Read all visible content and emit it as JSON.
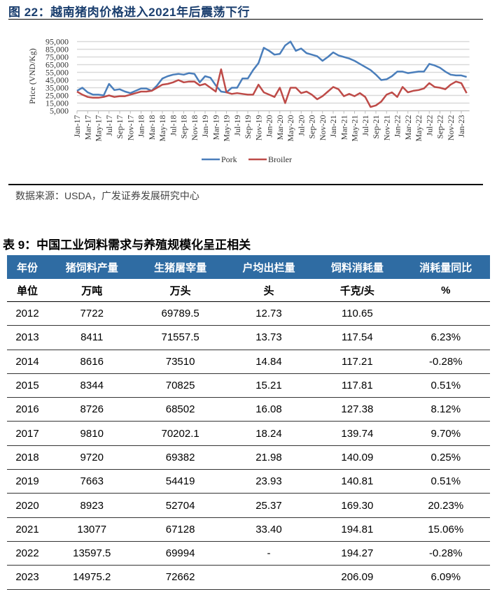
{
  "figure": {
    "title": "图 22：越南猪肉价格进入2021年后震荡下行",
    "source": "数据来源：USDA，广发证券发展研究中心"
  },
  "chart_data": {
    "type": "line",
    "ylabel": "Price (VND/Kg)",
    "xlabel": "",
    "ylim": [
      5000,
      95000
    ],
    "yticks": [
      "95,000",
      "85,000",
      "75,000",
      "65,000",
      "55,000",
      "45,000",
      "35,000",
      "25,000",
      "15,000",
      "5,000"
    ],
    "grid": true,
    "legend": "bottom",
    "x_start": "Jan-17",
    "x_tick_labels": [
      "Jan-17",
      "Mar-17",
      "May-17",
      "Jul-17",
      "Sep-17",
      "Nov-17",
      "Jan-18",
      "Mar-18",
      "May-18",
      "Jul-18",
      "Sep-18",
      "Nov-18",
      "Jan-19",
      "Mar-19",
      "May-19",
      "Jul-19",
      "Sep-19",
      "Nov-19",
      "Jan-20",
      "Mar-20",
      "May-20",
      "Jul-20",
      "Sep-20",
      "Nov-20",
      "Jan-21",
      "Mar-21",
      "May-21",
      "Jul-21",
      "Sep-21",
      "Nov-21",
      "Jan-22",
      "Mar-22",
      "May-22",
      "Jul-22",
      "Sep-22",
      "Nov-22",
      "Jan-23"
    ],
    "series": [
      {
        "name": "Pork",
        "color": "#4a7ebb",
        "values": [
          31000,
          35000,
          29000,
          26000,
          26000,
          25000,
          40000,
          32000,
          33000,
          30000,
          28000,
          31000,
          34000,
          34000,
          31000,
          38000,
          47000,
          50000,
          52000,
          53000,
          52000,
          54000,
          53000,
          42000,
          50000,
          48000,
          38000,
          30000,
          29000,
          35000,
          35000,
          47000,
          47000,
          58000,
          67000,
          87000,
          83000,
          78000,
          79000,
          90000,
          95000,
          83000,
          86000,
          80000,
          78000,
          76000,
          70000,
          75000,
          81000,
          77000,
          75000,
          73000,
          70000,
          66000,
          62000,
          58000,
          52000,
          45000,
          46000,
          50000,
          56000,
          56000,
          54000,
          55000,
          56000,
          56000,
          66000,
          64000,
          61000,
          56000,
          52000,
          51000,
          51000,
          49000
        ]
      },
      {
        "name": "Broiler",
        "color": "#be4b48",
        "values": [
          30000,
          26000,
          23000,
          22000,
          22000,
          23000,
          25000,
          23000,
          24000,
          24000,
          26000,
          28000,
          30000,
          30000,
          31000,
          35000,
          39000,
          40000,
          42000,
          45000,
          42000,
          43000,
          43000,
          38000,
          40000,
          35000,
          30000,
          59000,
          29000,
          27000,
          28000,
          27000,
          26000,
          26000,
          39000,
          29000,
          26000,
          23000,
          35000,
          15000,
          35000,
          35000,
          28000,
          30000,
          26000,
          20000,
          24000,
          30000,
          36000,
          33000,
          24000,
          27000,
          24000,
          28000,
          23000,
          10000,
          12000,
          17000,
          26000,
          29000,
          23000,
          36000,
          29000,
          31000,
          32000,
          34000,
          41000,
          36000,
          35000,
          33000,
          39000,
          43000,
          41000,
          28000
        ]
      }
    ]
  },
  "table": {
    "title": "表 9：中国工业饲料需求与养殖规模化呈正相关",
    "header_color": "#2f6ca3",
    "headers": [
      "年份",
      "猪饲料产量",
      "生猪屠宰量",
      "户均出栏量",
      "饲料消耗量",
      "消耗量同比"
    ],
    "units": [
      "单位",
      "万吨",
      "万头",
      "头",
      "千克/头",
      "%"
    ],
    "rows": [
      [
        "2012",
        "7722",
        "69789.5",
        "12.73",
        "110.65",
        ""
      ],
      [
        "2013",
        "8411",
        "71557.5",
        "13.73",
        "117.54",
        "6.23%"
      ],
      [
        "2014",
        "8616",
        "73510",
        "14.84",
        "117.21",
        "-0.28%"
      ],
      [
        "2015",
        "8344",
        "70825",
        "15.21",
        "117.81",
        "0.51%"
      ],
      [
        "2016",
        "8726",
        "68502",
        "16.08",
        "127.38",
        "8.12%"
      ],
      [
        "2017",
        "9810",
        "70202.1",
        "18.24",
        "139.74",
        "9.70%"
      ],
      [
        "2018",
        "9720",
        "69382",
        "21.98",
        "140.09",
        "0.25%"
      ],
      [
        "2019",
        "7663",
        "54419",
        "23.93",
        "140.81",
        "0.51%"
      ],
      [
        "2020",
        "8923",
        "52704",
        "25.37",
        "169.30",
        "20.23%"
      ],
      [
        "2021",
        "13077",
        "67128",
        "33.40",
        "194.81",
        "15.06%"
      ],
      [
        "2022",
        "13597.5",
        "69994",
        "-",
        "194.27",
        "-0.28%"
      ],
      [
        "2023",
        "14975.2",
        "72662",
        "",
        "206.09",
        "6.09%"
      ]
    ]
  }
}
